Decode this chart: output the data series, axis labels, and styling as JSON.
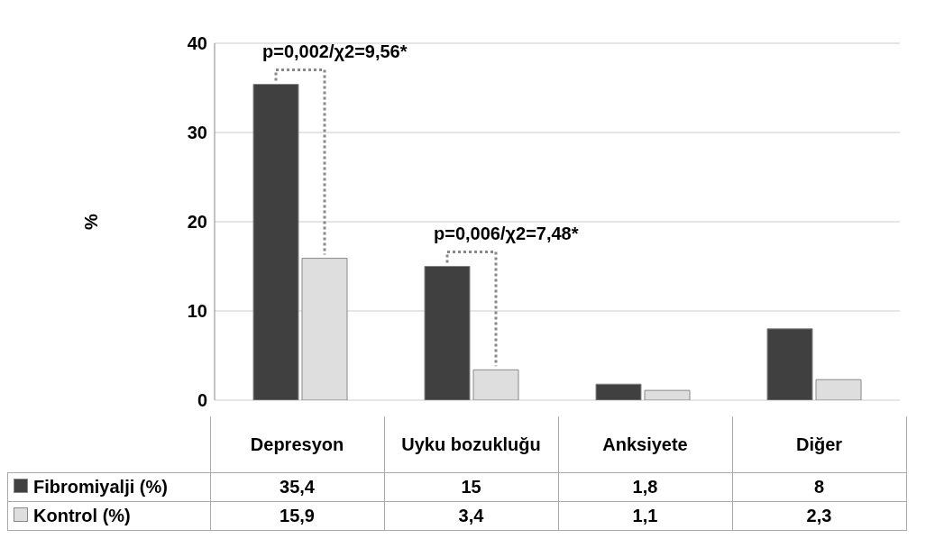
{
  "chart_data": {
    "type": "bar",
    "ylabel": "%",
    "categories": [
      "Depresyon",
      "Uyku bozukluğu",
      "Anksiyete",
      "Diğer"
    ],
    "series": [
      {
        "name": "Fibromiyalji (%)",
        "color": "#404040",
        "values": [
          35.4,
          15,
          1.8,
          8
        ],
        "value_labels": [
          "35,4",
          "15",
          "1,8",
          "8"
        ]
      },
      {
        "name": "Kontrol (%)",
        "color": "#dedede",
        "values": [
          15.9,
          3.4,
          1.1,
          2.3
        ],
        "value_labels": [
          "15,9",
          "3,4",
          "1,1",
          "2,3"
        ]
      }
    ],
    "ylim": [
      0,
      40
    ],
    "yticks": [
      0,
      10,
      20,
      30,
      40
    ],
    "grid": "y",
    "legend": "bottom",
    "annotations": [
      {
        "text": "p=0,002/χ2=9,56*",
        "x": "Depresyon",
        "y": 35.4
      },
      {
        "text": "p=0,006/χ2=7,48*",
        "x": "Uyku bozukluğu",
        "y": 15
      }
    ]
  }
}
